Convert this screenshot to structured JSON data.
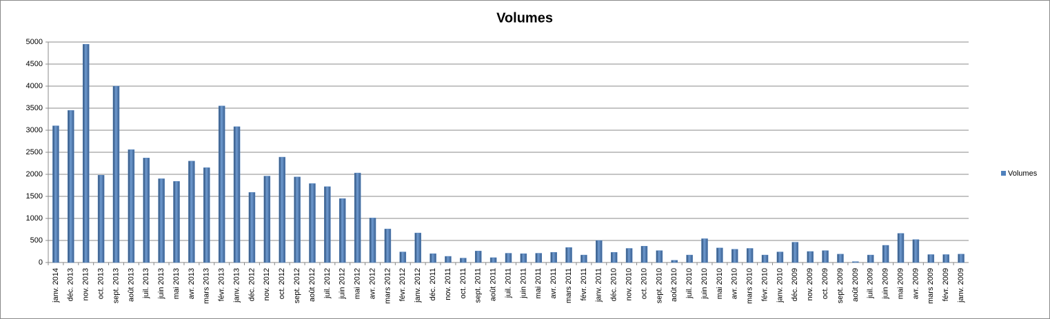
{
  "chart_data": {
    "type": "bar",
    "title": "Volumes",
    "categories": [
      "janv. 2014",
      "déc. 2013",
      "nov. 2013",
      "oct. 2013",
      "sept. 2013",
      "août 2013",
      "juil. 2013",
      "juin 2013",
      "mai 2013",
      "avr. 2013",
      "mars 2013",
      "févr. 2013",
      "janv. 2013",
      "déc. 2012",
      "nov. 2012",
      "oct. 2012",
      "sept. 2012",
      "août 2012",
      "juil. 2012",
      "juin 2012",
      "mai 2012",
      "avr. 2012",
      "mars 2012",
      "févr. 2012",
      "janv. 2012",
      "déc. 2011",
      "nov. 2011",
      "oct. 2011",
      "sept. 2011",
      "août 2011",
      "juil. 2011",
      "juin 2011",
      "mai 2011",
      "avr. 2011",
      "mars 2011",
      "févr. 2011",
      "janv. 2011",
      "déc. 2010",
      "nov. 2010",
      "oct. 2010",
      "sept. 2010",
      "août 2010",
      "juil. 2010",
      "juin 2010",
      "mai 2010",
      "avr. 2010",
      "mars 2010",
      "févr. 2010",
      "janv. 2010",
      "déc. 2009",
      "nov. 2009",
      "oct. 2009",
      "sept. 2009",
      "août 2009",
      "juil. 2009",
      "juin 2009",
      "mai 2009",
      "avr. 2009",
      "mars 2009",
      "févr. 2009",
      "janv. 2009"
    ],
    "series": [
      {
        "name": "Volumes",
        "color": "#4f81bd",
        "values": [
          3100,
          3450,
          4950,
          1980,
          4000,
          2560,
          2370,
          1900,
          1840,
          2300,
          2150,
          3550,
          3080,
          1590,
          1960,
          2390,
          1940,
          1790,
          1720,
          1450,
          2030,
          1010,
          760,
          240,
          670,
          200,
          140,
          100,
          260,
          110,
          210,
          200,
          210,
          230,
          340,
          170,
          500,
          230,
          320,
          370,
          270,
          50,
          170,
          540,
          330,
          300,
          320,
          170,
          240,
          460,
          250,
          270,
          190,
          20,
          170,
          390,
          660,
          520,
          180,
          180,
          190
        ]
      }
    ],
    "ylim": [
      0,
      5000
    ],
    "yticks": [
      0,
      500,
      1000,
      1500,
      2000,
      2500,
      3000,
      3500,
      4000,
      4500,
      5000
    ],
    "grid": true,
    "legend": "right"
  }
}
